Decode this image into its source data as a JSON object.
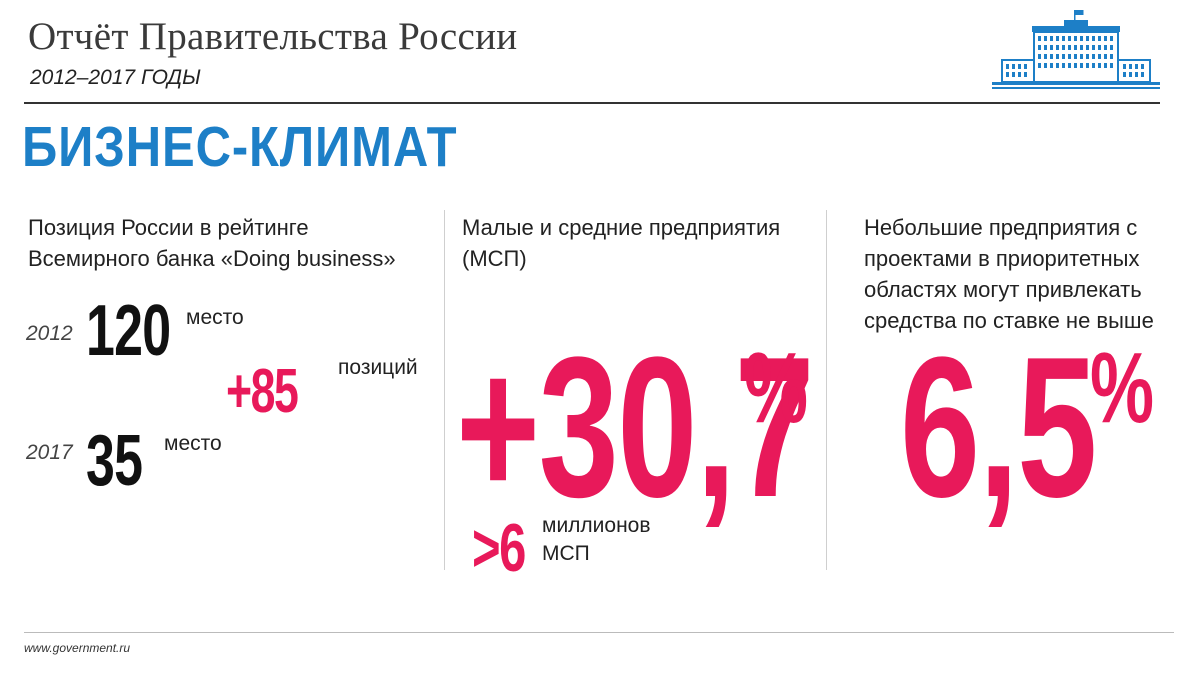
{
  "header": {
    "title": "Отчёт Правительства России",
    "subtitle": "2012–2017 ГОДЫ"
  },
  "section_title": "БИЗНЕС-КЛИМАТ",
  "logo": {
    "icon": "government-building-icon",
    "color": "#1d7fc7"
  },
  "col1": {
    "heading_lines": [
      "Позиция России в рейтинге",
      "Всемирного банка «Doing business»"
    ],
    "row2012": {
      "year": "2012",
      "value": "120",
      "unit": "место"
    },
    "change": {
      "value": "+85",
      "unit": "позиций"
    },
    "row2017": {
      "year": "2017",
      "value": "35",
      "unit": "место"
    }
  },
  "col2": {
    "heading_lines": [
      "Малые и средние предприятия",
      "(МСП)"
    ],
    "big_value": "+30,7",
    "big_percent": "%",
    "sub_value": ">6",
    "sub_lines": [
      "миллионов",
      "МСП"
    ]
  },
  "col3": {
    "heading_lines": [
      "Небольшие предприятия с",
      "проектами в приоритетных",
      "областях могут привлекать",
      "средства по ставке не выше"
    ],
    "big_value": "6,5",
    "big_percent": "%"
  },
  "footer": {
    "url": "www.government.ru"
  },
  "colors": {
    "accent_blue": "#1d7fc7",
    "accent_red": "#e8195a",
    "text_dark": "#111111"
  }
}
